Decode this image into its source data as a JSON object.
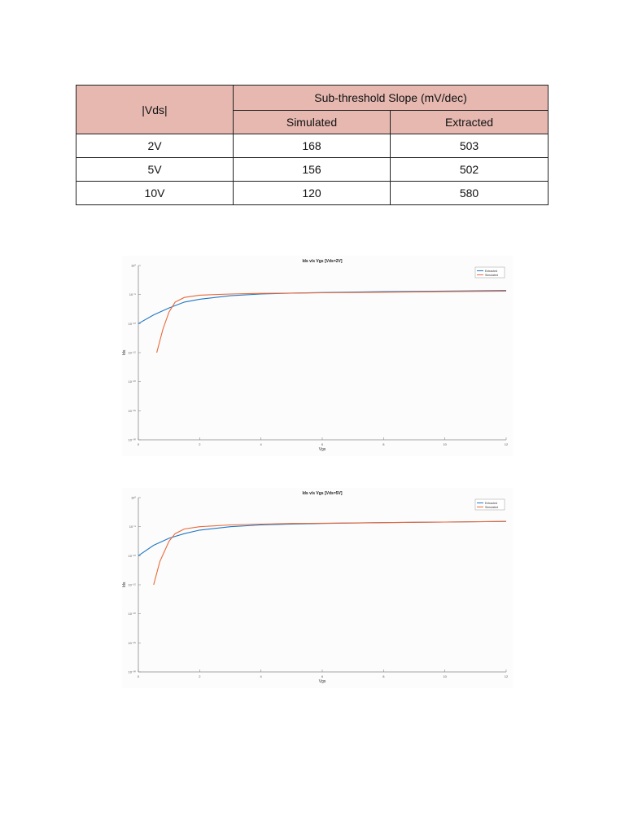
{
  "table": {
    "corner_header": "|Vds|",
    "group_header": "Sub-threshold Slope (mV/dec)",
    "col_simulated": "Simulated",
    "col_extracted": "Extracted",
    "rows": [
      {
        "vds": "2V",
        "simulated": "168",
        "extracted": "503"
      },
      {
        "vds": "5V",
        "simulated": "156",
        "extracted": "502"
      },
      {
        "vds": "10V",
        "simulated": "120",
        "extracted": "580"
      }
    ]
  },
  "chart_data": [
    {
      "type": "line",
      "title": "Ids v/s Vgs [Vds=2V]",
      "xlabel": "Vgs",
      "ylabel": "Ids",
      "xlim": [
        0,
        12
      ],
      "xticks": [
        "0",
        "2",
        "4",
        "6",
        "8",
        "10",
        "12"
      ],
      "ylim_log10": [
        -30,
        0
      ],
      "yscale": "log",
      "yticks": [
        "10⁰",
        "10⁻⁵",
        "10⁻¹⁰",
        "10⁻¹⁵",
        "10⁻²⁰",
        "10⁻²⁵",
        "10⁻³⁰"
      ],
      "legend_position": "top-right",
      "series": [
        {
          "name": "Extracted",
          "color": "#1f77c4",
          "x": [
            0,
            0.5,
            1,
            1.5,
            2,
            3,
            4,
            5,
            6,
            8,
            10,
            12
          ],
          "log10_y": [
            -10,
            -8.5,
            -7.3,
            -6.3,
            -5.8,
            -5.2,
            -4.9,
            -4.75,
            -4.65,
            -4.5,
            -4.4,
            -4.3
          ]
        },
        {
          "name": "Simulated",
          "color": "#e8693a",
          "x": [
            0.6,
            0.8,
            1,
            1.2,
            1.5,
            2,
            3,
            4,
            5,
            6,
            8,
            10,
            12
          ],
          "log10_y": [
            -15,
            -11,
            -8,
            -6.3,
            -5.5,
            -5.1,
            -4.9,
            -4.8,
            -4.75,
            -4.7,
            -4.6,
            -4.5,
            -4.4
          ]
        }
      ]
    },
    {
      "type": "line",
      "title": "Ids v/s Vgs [Vds=5V]",
      "xlabel": "Vgs",
      "ylabel": "Ids",
      "xlim": [
        0,
        12
      ],
      "xticks": [
        "0",
        "2",
        "4",
        "6",
        "8",
        "10",
        "12"
      ],
      "ylim_log10": [
        -30,
        0
      ],
      "yscale": "log",
      "yticks": [
        "10⁰",
        "10⁻⁵",
        "10⁻¹⁰",
        "10⁻¹⁵",
        "10⁻²⁰",
        "10⁻²⁵",
        "10⁻³⁰"
      ],
      "legend_position": "top-right",
      "series": [
        {
          "name": "Extracted",
          "color": "#1f77c4",
          "x": [
            0,
            0.5,
            1,
            1.5,
            2,
            3,
            4,
            5,
            6,
            8,
            10,
            12
          ],
          "log10_y": [
            -10,
            -8.2,
            -7.0,
            -6.2,
            -5.6,
            -5.0,
            -4.7,
            -4.55,
            -4.45,
            -4.3,
            -4.2,
            -4.1
          ]
        },
        {
          "name": "Simulated",
          "color": "#e8693a",
          "x": [
            0.5,
            0.7,
            1,
            1.2,
            1.5,
            2,
            3,
            4,
            5,
            6,
            8,
            10,
            12
          ],
          "log10_y": [
            -15,
            -11,
            -7.5,
            -6.2,
            -5.4,
            -5.0,
            -4.7,
            -4.55,
            -4.45,
            -4.4,
            -4.3,
            -4.2,
            -4.1
          ]
        }
      ]
    }
  ]
}
